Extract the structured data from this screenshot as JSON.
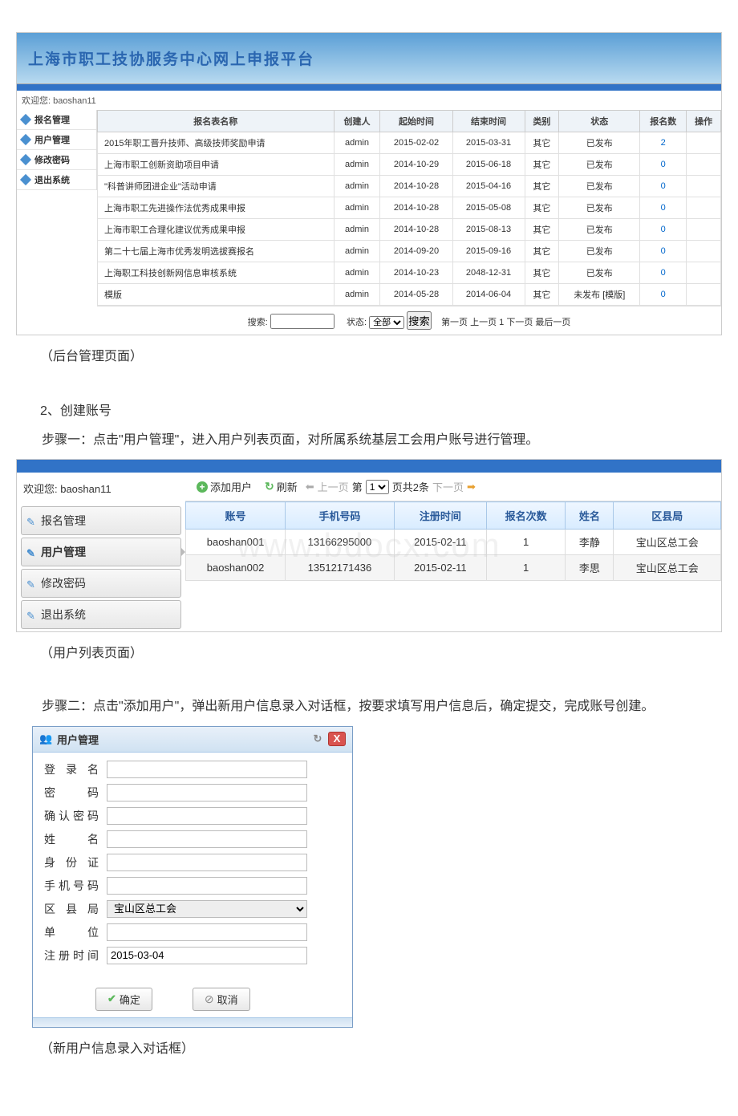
{
  "s1": {
    "banner": "上海市职工技协服务中心网上申报平台",
    "welcome": "欢迎您: baoshan11",
    "nav": [
      "报名管理",
      "用户管理",
      "修改密码",
      "退出系统"
    ],
    "cols": [
      "报名表名称",
      "创建人",
      "起始时间",
      "结束时间",
      "类别",
      "状态",
      "报名数",
      "操作"
    ],
    "rows": [
      {
        "name": "2015年职工晋升技师、高级技师奖励申请",
        "creator": "admin",
        "start": "2015-02-02",
        "end": "2015-03-31",
        "cat": "其它",
        "status": "已发布",
        "count": "2"
      },
      {
        "name": "上海市职工创新资助项目申请",
        "creator": "admin",
        "start": "2014-10-29",
        "end": "2015-06-18",
        "cat": "其它",
        "status": "已发布",
        "count": "0"
      },
      {
        "name": "\"科普讲师团进企业\"活动申请",
        "creator": "admin",
        "start": "2014-10-28",
        "end": "2015-04-16",
        "cat": "其它",
        "status": "已发布",
        "count": "0"
      },
      {
        "name": "上海市职工先进操作法优秀成果申报",
        "creator": "admin",
        "start": "2014-10-28",
        "end": "2015-05-08",
        "cat": "其它",
        "status": "已发布",
        "count": "0"
      },
      {
        "name": "上海市职工合理化建议优秀成果申报",
        "creator": "admin",
        "start": "2014-10-28",
        "end": "2015-08-13",
        "cat": "其它",
        "status": "已发布",
        "count": "0"
      },
      {
        "name": "第二十七届上海市优秀发明选拔赛报名",
        "creator": "admin",
        "start": "2014-09-20",
        "end": "2015-09-16",
        "cat": "其它",
        "status": "已发布",
        "count": "0"
      },
      {
        "name": "上海职工科技创新网信息审核系统",
        "creator": "admin",
        "start": "2014-10-23",
        "end": "2048-12-31",
        "cat": "其它",
        "status": "已发布",
        "count": "0"
      },
      {
        "name": "模版",
        "creator": "admin",
        "start": "2014-05-28",
        "end": "2014-06-04",
        "cat": "其它",
        "status": "未发布 [模版]",
        "count": "0"
      }
    ],
    "footer": {
      "searchLabel": "搜索:",
      "statusLabel": "状态:",
      "statusVal": "全部",
      "btn": "搜索",
      "pager": "第一页 上一页 1 下一页 最后一页"
    }
  },
  "cap1": "（后台管理页面）",
  "h2": "2、创建账号",
  "p1": "步骤一：点击\"用户管理\"，进入用户列表页面，对所属系统基层工会用户账号进行管理。",
  "s2": {
    "welcome": "欢迎您: baoshan11",
    "nav": [
      "报名管理",
      "用户管理",
      "修改密码",
      "退出系统"
    ],
    "btnAdd": "添加用户",
    "btnRef": "刷新",
    "pagerPrev": "上一页",
    "pagerLabel1": "第",
    "pagerLabel2": "页共2条",
    "pagerNext": "下一页",
    "cols": [
      "账号",
      "手机号码",
      "注册时间",
      "报名次数",
      "姓名",
      "区县局"
    ],
    "rows": [
      {
        "acc": "baoshan001",
        "phone": "13166295000",
        "reg": "2015-02-11",
        "cnt": "1",
        "name": "李静",
        "org": "宝山区总工会"
      },
      {
        "acc": "baoshan002",
        "phone": "13512171436",
        "reg": "2015-02-11",
        "cnt": "1",
        "name": "李思",
        "org": "宝山区总工会"
      }
    ]
  },
  "cap2": "（用户列表页面）",
  "p2": "步骤二：点击\"添加用户\"，弹出新用户信息录入对话框，按要求填写用户信息后，确定提交，完成账号创建。",
  "s3": {
    "title": "用户管理",
    "fields": [
      {
        "label": "登 录 名",
        "type": "text",
        "val": ""
      },
      {
        "label": "密　　码",
        "type": "text",
        "val": ""
      },
      {
        "label": "确认密码",
        "type": "text",
        "val": ""
      },
      {
        "label": "姓　　名",
        "type": "text",
        "val": ""
      },
      {
        "label": "身份证",
        "type": "text",
        "val": ""
      },
      {
        "label": "手机号码",
        "type": "text",
        "val": ""
      },
      {
        "label": "区县局",
        "type": "select",
        "val": "宝山区总工会"
      },
      {
        "label": "单位",
        "type": "text",
        "val": ""
      },
      {
        "label": "注册时间",
        "type": "text",
        "val": "2015-03-04"
      }
    ],
    "ok": "确定",
    "cancel": "取消"
  },
  "cap3": "（新用户信息录入对话框）"
}
